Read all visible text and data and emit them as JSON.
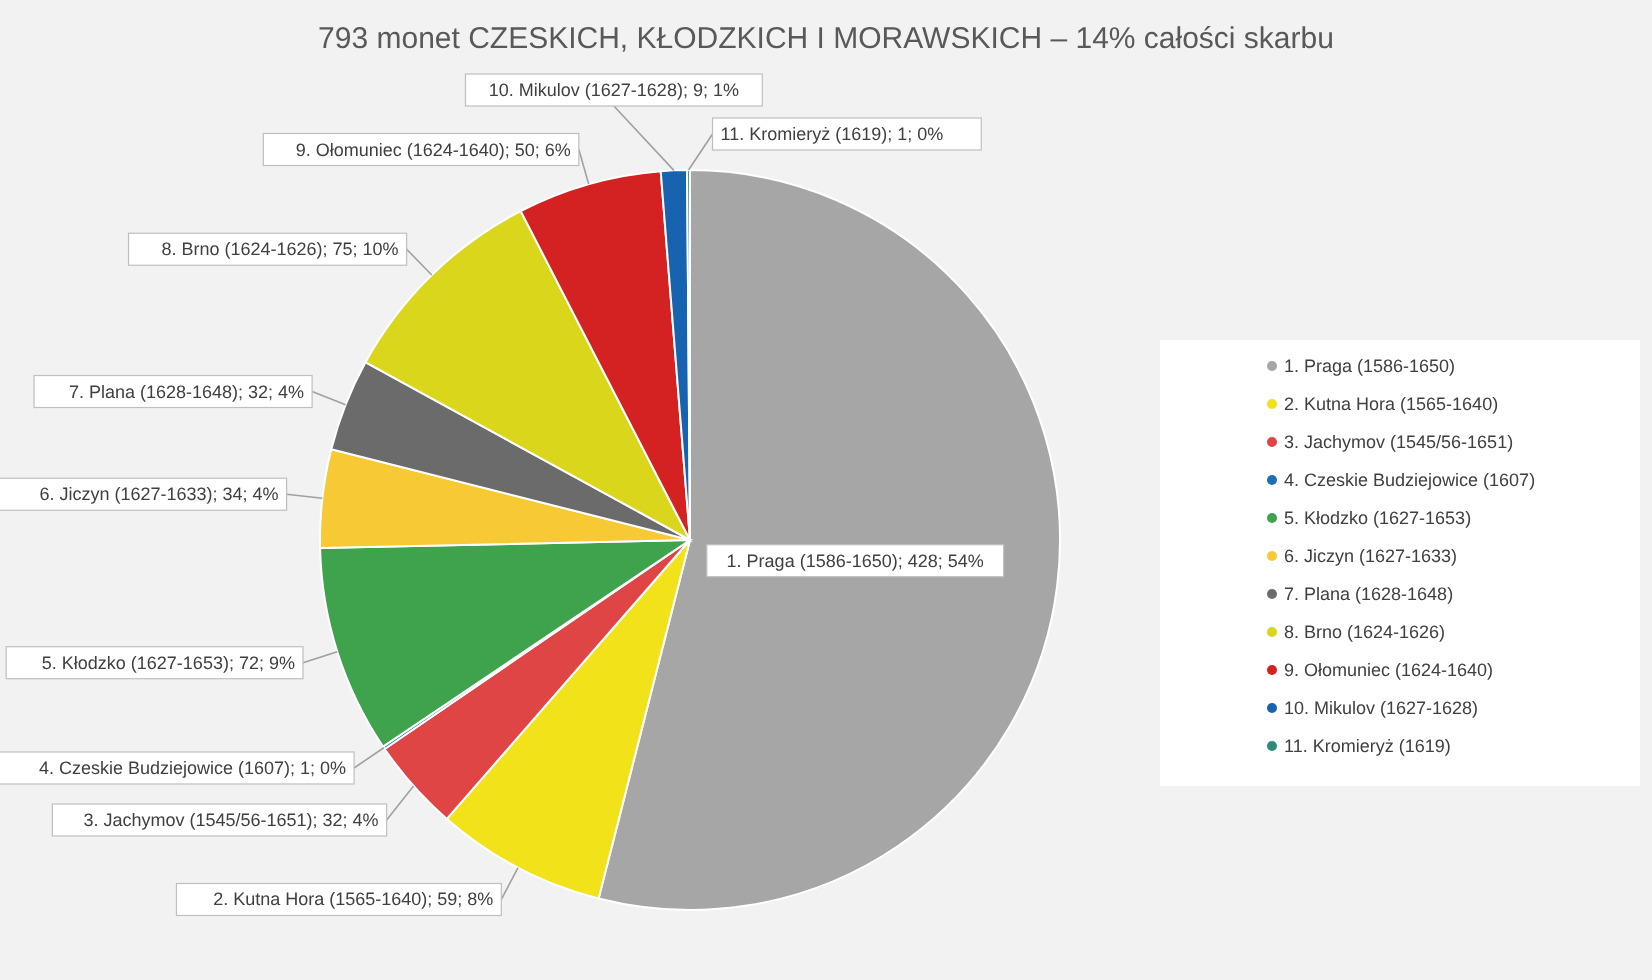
{
  "chart_data": {
    "type": "pie",
    "title": "793 monet CZESKICH, KŁODZKICH I MORAWSKICH – 14% całości skarbu",
    "categories": [
      "1. Praga (1586-1650)",
      "2. Kutna Hora (1565-1640)",
      "3. Jachymov (1545/56-1651)",
      "4. Czeskie Budziejowice (1607)",
      "5. Kłodzko (1627-1653)",
      "6. Jiczyn (1627-1633)",
      "7. Plana (1628-1648)",
      "8. Brno (1624-1626)",
      "9. Ołomuniec (1624-1640)",
      "10. Mikulov (1627-1628)",
      "11. Kromieryż (1619)"
    ],
    "values": [
      428,
      59,
      32,
      1,
      72,
      34,
      32,
      75,
      50,
      9,
      1
    ],
    "colors": [
      "#a6a6a6",
      "#f2e21a",
      "#e04545",
      "#1f6fb5",
      "#3fa34d",
      "#f7c935",
      "#6b6b6b",
      "#d9d61c",
      "#d42222",
      "#1763b0",
      "#2e8b7a"
    ],
    "value_labels": [
      "1. Praga (1586-1650); 428; 54%",
      "2. Kutna Hora (1565-1640); 59; 8%",
      "3. Jachymov (1545/56-1651); 32; 4%",
      "4. Czeskie Budziejowice (1607); 1; 0%",
      "5. Kłodzko (1627-1653); 72; 9%",
      "6. Jiczyn (1627-1633); 34; 4%",
      "7. Plana (1628-1648); 32; 4%",
      "8. Brno (1624-1626); 75; 10%",
      "9. Ołomuniec (1624-1640); 50; 6%",
      "10. Mikulov (1627-1628); 9; 1%",
      "11. Kromieryż (1619); 1; 0%"
    ],
    "legend": "right"
  }
}
